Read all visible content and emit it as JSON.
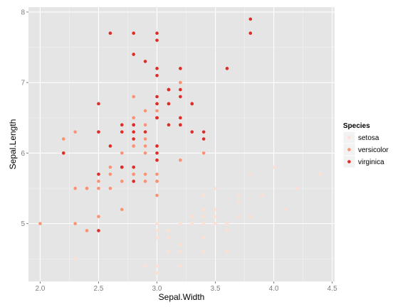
{
  "chart_data": {
    "type": "scatter",
    "xlabel": "Sepal.Width",
    "ylabel": "Sepal.Length",
    "xlim": [
      1.9,
      4.52
    ],
    "ylim": [
      4.18,
      8.07
    ],
    "x_ticks": [
      2.0,
      2.5,
      3.0,
      3.5,
      4.0,
      4.5
    ],
    "x_tick_labels": [
      "2.0",
      "2.5",
      "3.0",
      "3.5",
      "4.0",
      "4.5"
    ],
    "y_ticks": [
      5,
      6,
      7,
      8
    ],
    "y_tick_labels": [
      "5",
      "6",
      "7",
      "8"
    ],
    "grid": true,
    "legend": {
      "title": "Species",
      "position": "right"
    },
    "panel_background": "#e5e5e5",
    "grid_color": "#ffffff",
    "series": [
      {
        "name": "setosa",
        "color": "#fee0d2",
        "points": [
          [
            3.5,
            5.1
          ],
          [
            3.0,
            4.9
          ],
          [
            3.2,
            4.7
          ],
          [
            3.1,
            4.6
          ],
          [
            3.6,
            5.0
          ],
          [
            3.9,
            5.4
          ],
          [
            3.4,
            4.6
          ],
          [
            3.4,
            5.0
          ],
          [
            2.9,
            4.4
          ],
          [
            3.1,
            4.9
          ],
          [
            3.7,
            5.4
          ],
          [
            3.4,
            4.8
          ],
          [
            3.0,
            4.8
          ],
          [
            3.0,
            4.3
          ],
          [
            4.0,
            5.8
          ],
          [
            4.4,
            5.7
          ],
          [
            3.9,
            5.4
          ],
          [
            3.5,
            5.1
          ],
          [
            3.8,
            5.7
          ],
          [
            3.8,
            5.1
          ],
          [
            3.4,
            5.4
          ],
          [
            3.7,
            5.1
          ],
          [
            3.6,
            4.6
          ],
          [
            3.3,
            5.1
          ],
          [
            3.4,
            4.8
          ],
          [
            3.0,
            5.0
          ],
          [
            3.4,
            5.0
          ],
          [
            3.5,
            5.2
          ],
          [
            3.4,
            5.2
          ],
          [
            3.2,
            4.7
          ],
          [
            3.1,
            4.8
          ],
          [
            3.4,
            5.4
          ],
          [
            4.1,
            5.2
          ],
          [
            4.2,
            5.5
          ],
          [
            3.1,
            4.9
          ],
          [
            3.2,
            5.0
          ],
          [
            3.5,
            5.5
          ],
          [
            3.6,
            4.9
          ],
          [
            3.0,
            4.4
          ],
          [
            3.4,
            5.1
          ],
          [
            3.5,
            5.0
          ],
          [
            2.3,
            4.5
          ],
          [
            3.2,
            4.4
          ],
          [
            3.5,
            5.0
          ],
          [
            3.8,
            5.1
          ],
          [
            3.0,
            4.8
          ],
          [
            3.8,
            5.1
          ],
          [
            3.2,
            4.6
          ],
          [
            3.7,
            5.3
          ],
          [
            3.3,
            5.0
          ]
        ]
      },
      {
        "name": "versicolor",
        "color": "#fc9272",
        "points": [
          [
            3.2,
            7.0
          ],
          [
            3.2,
            6.4
          ],
          [
            3.1,
            6.9
          ],
          [
            2.3,
            5.5
          ],
          [
            2.8,
            6.5
          ],
          [
            2.8,
            5.7
          ],
          [
            3.3,
            6.3
          ],
          [
            2.4,
            4.9
          ],
          [
            2.9,
            6.6
          ],
          [
            2.7,
            5.2
          ],
          [
            2.0,
            5.0
          ],
          [
            3.0,
            5.9
          ],
          [
            2.2,
            6.0
          ],
          [
            2.9,
            6.1
          ],
          [
            2.9,
            5.6
          ],
          [
            3.1,
            6.7
          ],
          [
            3.0,
            5.6
          ],
          [
            2.7,
            5.8
          ],
          [
            2.2,
            6.2
          ],
          [
            2.5,
            5.6
          ],
          [
            3.2,
            5.9
          ],
          [
            2.8,
            6.1
          ],
          [
            2.5,
            6.3
          ],
          [
            2.8,
            6.1
          ],
          [
            2.9,
            6.4
          ],
          [
            3.0,
            6.6
          ],
          [
            2.8,
            6.8
          ],
          [
            3.0,
            6.7
          ],
          [
            2.9,
            6.0
          ],
          [
            2.6,
            5.7
          ],
          [
            2.4,
            5.5
          ],
          [
            2.4,
            5.5
          ],
          [
            2.7,
            5.8
          ],
          [
            2.7,
            6.0
          ],
          [
            3.0,
            5.4
          ],
          [
            3.4,
            6.0
          ],
          [
            3.1,
            6.7
          ],
          [
            2.3,
            6.3
          ],
          [
            3.0,
            5.6
          ],
          [
            2.5,
            5.5
          ],
          [
            2.6,
            5.5
          ],
          [
            3.0,
            6.1
          ],
          [
            2.6,
            5.8
          ],
          [
            2.3,
            5.0
          ],
          [
            2.7,
            5.6
          ],
          [
            3.0,
            5.7
          ],
          [
            2.9,
            5.7
          ],
          [
            2.9,
            6.2
          ],
          [
            2.5,
            5.1
          ],
          [
            2.8,
            5.7
          ]
        ]
      },
      {
        "name": "virginica",
        "color": "#de2d26",
        "points": [
          [
            3.3,
            6.3
          ],
          [
            2.7,
            5.8
          ],
          [
            3.0,
            7.1
          ],
          [
            2.9,
            6.3
          ],
          [
            3.0,
            6.5
          ],
          [
            3.0,
            7.6
          ],
          [
            2.5,
            4.9
          ],
          [
            2.9,
            7.3
          ],
          [
            2.5,
            6.7
          ],
          [
            3.6,
            7.2
          ],
          [
            3.2,
            6.5
          ],
          [
            2.7,
            6.4
          ],
          [
            3.0,
            6.8
          ],
          [
            2.5,
            5.7
          ],
          [
            2.8,
            5.8
          ],
          [
            3.2,
            6.4
          ],
          [
            3.0,
            6.5
          ],
          [
            3.8,
            7.7
          ],
          [
            2.6,
            7.7
          ],
          [
            2.2,
            6.0
          ],
          [
            3.2,
            6.9
          ],
          [
            2.8,
            5.6
          ],
          [
            2.8,
            7.7
          ],
          [
            2.7,
            6.3
          ],
          [
            3.3,
            6.7
          ],
          [
            3.2,
            7.2
          ],
          [
            2.8,
            6.2
          ],
          [
            3.0,
            6.1
          ],
          [
            2.8,
            6.4
          ],
          [
            3.0,
            7.2
          ],
          [
            2.8,
            7.4
          ],
          [
            3.8,
            7.9
          ],
          [
            2.8,
            6.4
          ],
          [
            2.8,
            6.3
          ],
          [
            2.6,
            6.1
          ],
          [
            3.0,
            7.7
          ],
          [
            3.4,
            6.3
          ],
          [
            3.1,
            6.4
          ],
          [
            3.0,
            6.0
          ],
          [
            3.1,
            6.9
          ],
          [
            3.1,
            6.7
          ],
          [
            3.1,
            6.9
          ],
          [
            2.7,
            5.8
          ],
          [
            3.2,
            6.8
          ],
          [
            3.3,
            6.7
          ],
          [
            3.0,
            6.7
          ],
          [
            2.5,
            6.3
          ],
          [
            3.0,
            6.5
          ],
          [
            3.4,
            6.2
          ],
          [
            3.0,
            5.9
          ]
        ]
      }
    ]
  }
}
